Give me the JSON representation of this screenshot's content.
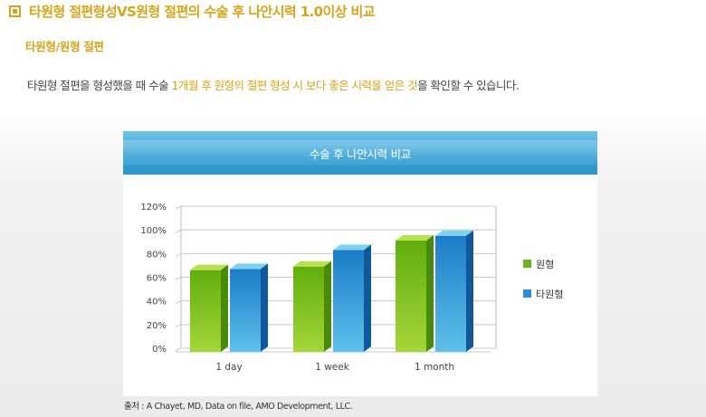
{
  "header": {
    "title": "타원형 절편형성VS원형 절편의 수술 후 나안시력 1.0이상 비교",
    "subtitle": "타원형/원형 절편",
    "description_pre": "타원형 절편을 형성했을 때 수술 ",
    "description_highlight": "1개월 후 원형의 절편 형성 시 보다 좋은 시력을 얻은 것",
    "description_post": "을 확인할 수 있습니다."
  },
  "colors": {
    "accent": "#d4a51a",
    "header_blue": "#3aa3d6",
    "series_green": "#79c11a",
    "series_blue": "#2a8fd6"
  },
  "chart_data": {
    "type": "bar",
    "title": "수술 후 나안시력 비교",
    "categories": [
      "1 day",
      "1 week",
      "1 month"
    ],
    "yticks": [
      "0%",
      "20%",
      "40%",
      "60%",
      "80%",
      "100%",
      "120%"
    ],
    "ylim": [
      0,
      120
    ],
    "grid": true,
    "legend_position": "right",
    "series": [
      {
        "name": "원형",
        "values": [
          66,
          69,
          91
        ]
      },
      {
        "name": "타원형",
        "values": [
          67,
          83,
          95
        ]
      }
    ]
  },
  "source_text": "출처 : A Chayet, MD, Data on file, AMO Development, LLC."
}
